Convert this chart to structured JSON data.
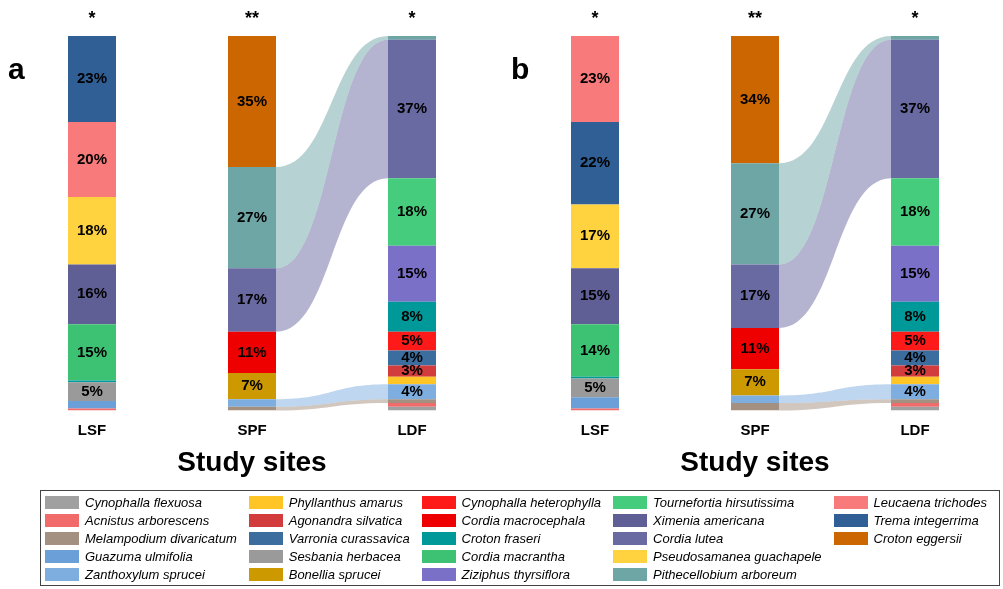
{
  "chart_data": [
    {
      "type": "bar",
      "title": "a",
      "xlabel": "Study sites",
      "stacked": true,
      "legend": "bottom",
      "categories": [
        "LSF",
        "SPF",
        "LDF"
      ],
      "annotations": [
        "*",
        "**",
        "*"
      ],
      "series": [
        {
          "name": "Cynophalla flexuosa",
          "color": "#a0a0a0",
          "values": [
            0,
            0,
            1
          ],
          "value_labels": [
            null,
            null,
            null
          ]
        },
        {
          "name": "Acnistus arborescens",
          "color": "#f26b6b",
          "values": [
            0.5,
            0,
            1
          ],
          "value_labels": [
            null,
            null,
            null
          ]
        },
        {
          "name": "Melampodium divaricatum",
          "color": "#a39080",
          "values": [
            0,
            1,
            1
          ],
          "value_labels": [
            null,
            null,
            null
          ]
        },
        {
          "name": "Guazuma ulmifolia",
          "color": "#6a9fd8",
          "values": [
            2,
            0,
            0
          ],
          "value_labels": [
            null,
            null,
            null
          ]
        },
        {
          "name": "Zanthoxylum sprucei",
          "color": "#7eaee0",
          "values": [
            0,
            2,
            4
          ],
          "value_labels": [
            null,
            null,
            "4%"
          ]
        },
        {
          "name": "Phyllanthus amarus",
          "color": "#ffc425",
          "values": [
            0,
            0,
            2
          ],
          "value_labels": [
            null,
            null,
            null
          ]
        },
        {
          "name": "Agonandra silvatica",
          "color": "#d23c3c",
          "values": [
            0,
            0,
            3
          ],
          "value_labels": [
            null,
            null,
            "3%"
          ]
        },
        {
          "name": "Varronia curassavica",
          "color": "#3b6d9e",
          "values": [
            0,
            0,
            4
          ],
          "value_labels": [
            null,
            null,
            "4%"
          ]
        },
        {
          "name": "Sesbania herbacea",
          "color": "#9a9a9a",
          "values": [
            5,
            0,
            0
          ],
          "value_labels": [
            "5%",
            null,
            null
          ]
        },
        {
          "name": "Bonellia sprucei",
          "color": "#cc9900",
          "values": [
            0,
            7,
            0
          ],
          "value_labels": [
            null,
            "7%",
            null
          ]
        },
        {
          "name": "Cynophalla heterophylla",
          "color": "#ff1a1a",
          "values": [
            0,
            0,
            5
          ],
          "value_labels": [
            null,
            null,
            "5%"
          ]
        },
        {
          "name": "Cordia macrocephala",
          "color": "#ee0000",
          "values": [
            0,
            11,
            0
          ],
          "value_labels": [
            null,
            "11%",
            null
          ]
        },
        {
          "name": "Croton fraseri",
          "color": "#009999",
          "values": [
            0.5,
            0,
            8
          ],
          "value_labels": [
            null,
            null,
            "8%"
          ]
        },
        {
          "name": "Cordia macrantha",
          "color": "#3cc272",
          "values": [
            15,
            0,
            0
          ],
          "value_labels": [
            "15%",
            null,
            null
          ]
        },
        {
          "name": "Ziziphus thyrsiflora",
          "color": "#7b70c8",
          "values": [
            0,
            0,
            15
          ],
          "value_labels": [
            null,
            null,
            "15%"
          ]
        },
        {
          "name": "Tournefortia hirsutissima",
          "color": "#45cc7c",
          "values": [
            0,
            0,
            18
          ],
          "value_labels": [
            null,
            null,
            "18%"
          ]
        },
        {
          "name": "Ximenia americana",
          "color": "#5f5f95",
          "values": [
            16,
            0,
            0
          ],
          "value_labels": [
            "16%",
            null,
            null
          ]
        },
        {
          "name": "Cordia lutea",
          "color": "#6a6aa2",
          "values": [
            0,
            17,
            37
          ],
          "value_labels": [
            null,
            "17%",
            "37%"
          ]
        },
        {
          "name": "Pseudosamanea guachapele",
          "color": "#ffd23f",
          "values": [
            18,
            0,
            0
          ],
          "value_labels": [
            "18%",
            null,
            null
          ]
        },
        {
          "name": "Pithecellobium arboreum",
          "color": "#6ea6a6",
          "values": [
            0,
            27,
            1
          ],
          "value_labels": [
            null,
            "27%",
            null
          ]
        },
        {
          "name": "Leucaena trichodes",
          "color": "#f87a7a",
          "values": [
            20,
            0,
            0
          ],
          "value_labels": [
            "20%",
            null,
            null
          ]
        },
        {
          "name": "Trema integerrima",
          "color": "#2f5f95",
          "values": [
            23,
            0,
            0
          ],
          "value_labels": [
            "23%",
            null,
            null
          ]
        },
        {
          "name": "Croton eggersii",
          "color": "#cc6600",
          "values": [
            0,
            35,
            0
          ],
          "value_labels": [
            null,
            "35%",
            null
          ]
        }
      ]
    },
    {
      "type": "bar",
      "title": "b",
      "xlabel": "Study sites",
      "stacked": true,
      "legend": "bottom",
      "categories": [
        "LSF",
        "SPF",
        "LDF"
      ],
      "annotations": [
        "*",
        "**",
        "*"
      ],
      "series": [
        {
          "name": "Cynophalla flexuosa",
          "color": "#a0a0a0",
          "values": [
            0,
            0,
            1
          ],
          "value_labels": [
            null,
            null,
            null
          ]
        },
        {
          "name": "Acnistus arborescens",
          "color": "#f26b6b",
          "values": [
            0.5,
            0,
            1
          ],
          "value_labels": [
            null,
            null,
            null
          ]
        },
        {
          "name": "Melampodium divaricatum",
          "color": "#a39080",
          "values": [
            0,
            2,
            1
          ],
          "value_labels": [
            null,
            null,
            null
          ]
        },
        {
          "name": "Guazuma ulmifolia",
          "color": "#6a9fd8",
          "values": [
            3,
            0,
            0
          ],
          "value_labels": [
            null,
            null,
            null
          ]
        },
        {
          "name": "Zanthoxylum sprucei",
          "color": "#7eaee0",
          "values": [
            0,
            2,
            4
          ],
          "value_labels": [
            null,
            null,
            "4%"
          ]
        },
        {
          "name": "Phyllanthus amarus",
          "color": "#ffc425",
          "values": [
            0,
            0,
            2
          ],
          "value_labels": [
            null,
            null,
            null
          ]
        },
        {
          "name": "Agonandra silvatica",
          "color": "#d23c3c",
          "values": [
            0,
            0,
            3
          ],
          "value_labels": [
            null,
            null,
            "3%"
          ]
        },
        {
          "name": "Varronia curassavica",
          "color": "#3b6d9e",
          "values": [
            0,
            0,
            4
          ],
          "value_labels": [
            null,
            null,
            "4%"
          ]
        },
        {
          "name": "Sesbania herbacea",
          "color": "#9a9a9a",
          "values": [
            5,
            0,
            0
          ],
          "value_labels": [
            "5%",
            null,
            null
          ]
        },
        {
          "name": "Bonellia sprucei",
          "color": "#cc9900",
          "values": [
            0,
            7,
            0
          ],
          "value_labels": [
            null,
            "7%",
            null
          ]
        },
        {
          "name": "Cynophalla heterophylla",
          "color": "#ff1a1a",
          "values": [
            0,
            0,
            5
          ],
          "value_labels": [
            null,
            null,
            "5%"
          ]
        },
        {
          "name": "Cordia macrocephala",
          "color": "#ee0000",
          "values": [
            0,
            11,
            0
          ],
          "value_labels": [
            null,
            "11%",
            null
          ]
        },
        {
          "name": "Croton fraseri",
          "color": "#009999",
          "values": [
            0.5,
            0,
            8
          ],
          "value_labels": [
            null,
            null,
            "8%"
          ]
        },
        {
          "name": "Cordia macrantha",
          "color": "#3cc272",
          "values": [
            14,
            0,
            0
          ],
          "value_labels": [
            "14%",
            null,
            null
          ]
        },
        {
          "name": "Ziziphus thyrsiflora",
          "color": "#7b70c8",
          "values": [
            0,
            0,
            15
          ],
          "value_labels": [
            null,
            null,
            "15%"
          ]
        },
        {
          "name": "Tournefortia hirsutissima",
          "color": "#45cc7c",
          "values": [
            0,
            0,
            18
          ],
          "value_labels": [
            null,
            null,
            "18%"
          ]
        },
        {
          "name": "Ximenia americana",
          "color": "#5f5f95",
          "values": [
            15,
            0,
            0
          ],
          "value_labels": [
            "15%",
            null,
            null
          ]
        },
        {
          "name": "Cordia lutea",
          "color": "#6a6aa2",
          "values": [
            0,
            17,
            37
          ],
          "value_labels": [
            null,
            "17%",
            "37%"
          ]
        },
        {
          "name": "Pseudosamanea guachapele",
          "color": "#ffd23f",
          "values": [
            17,
            0,
            0
          ],
          "value_labels": [
            "17%",
            null,
            null
          ]
        },
        {
          "name": "Pithecellobium arboreum",
          "color": "#6ea6a6",
          "values": [
            0,
            27,
            1
          ],
          "value_labels": [
            null,
            "27%",
            null
          ]
        },
        {
          "name": "Trema integerrima",
          "color": "#2f5f95",
          "values": [
            22,
            0,
            0
          ],
          "value_labels": [
            "22%",
            null,
            null
          ]
        },
        {
          "name": "Leucaena trichodes",
          "color": "#f87a7a",
          "values": [
            23,
            0,
            0
          ],
          "value_labels": [
            "23%",
            null,
            null
          ]
        },
        {
          "name": "Croton eggersii",
          "color": "#cc6600",
          "values": [
            0,
            34,
            0
          ],
          "value_labels": [
            null,
            "34%",
            null
          ]
        }
      ]
    }
  ]
}
